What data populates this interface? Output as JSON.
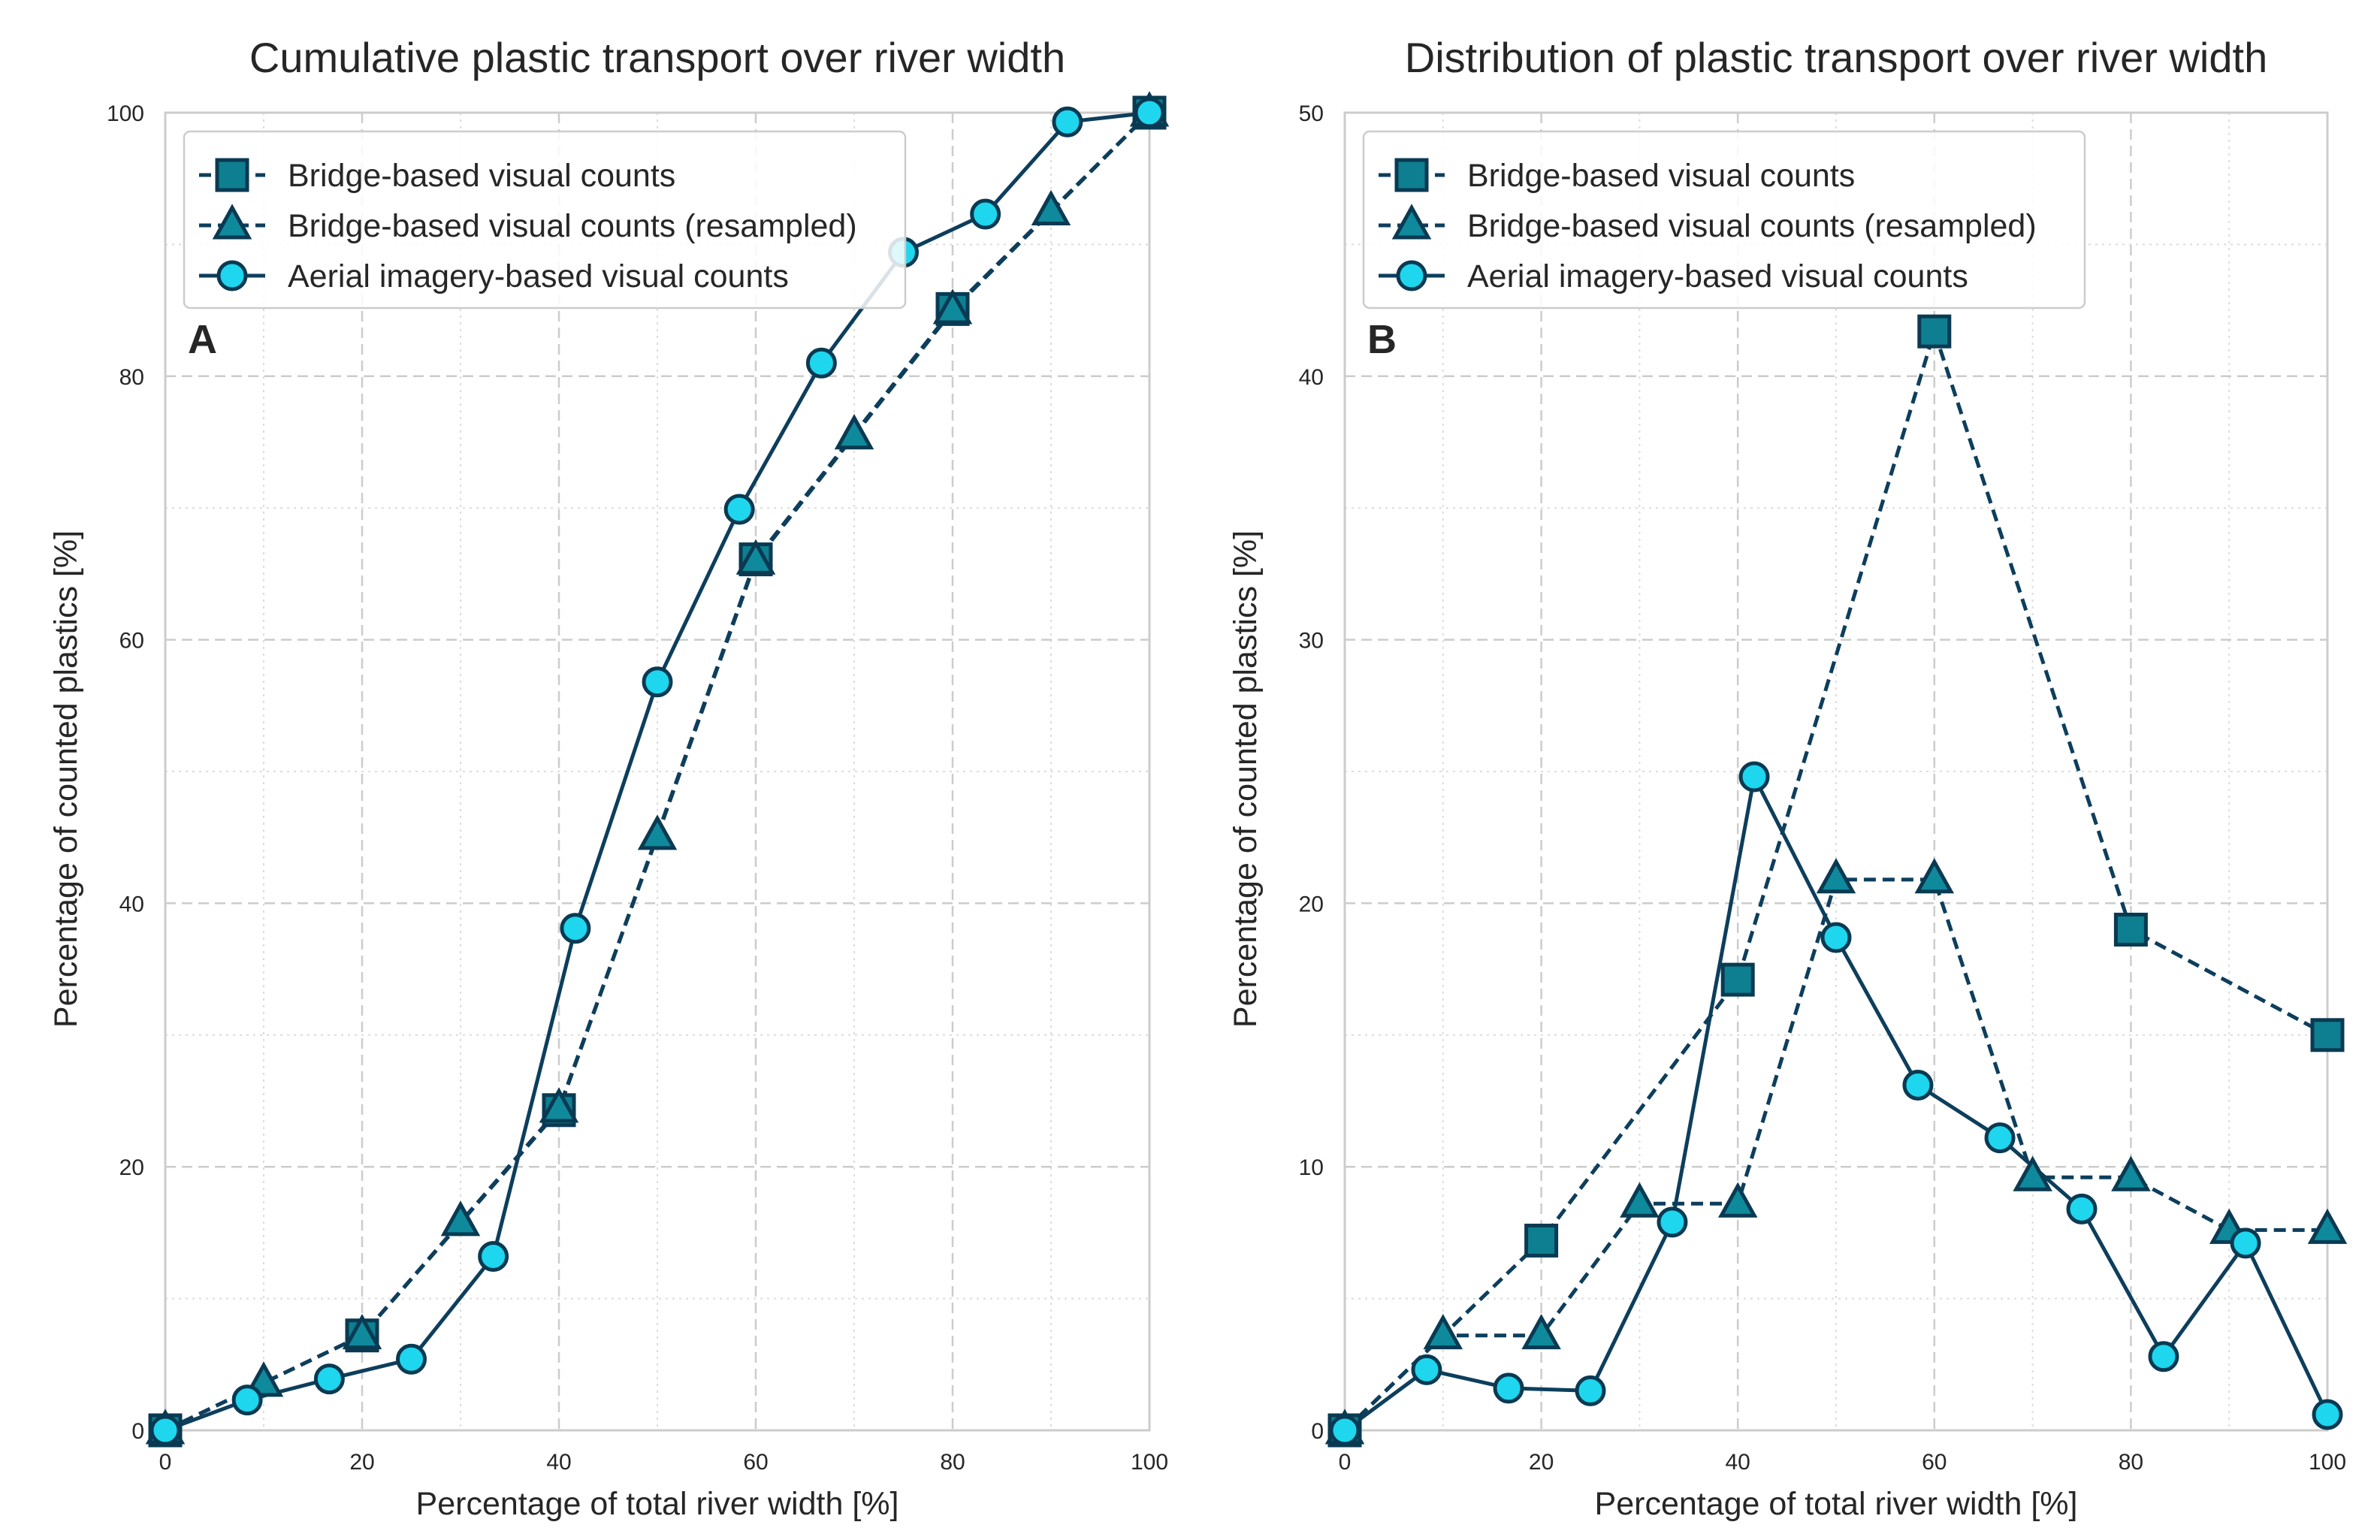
{
  "colors": {
    "line": "#0d3e5c",
    "square_fill": "#0e7f90",
    "triangle_fill": "#0e8a9c",
    "circle_fill": "#1ed6ee",
    "marker_edge": "#0a3a52",
    "grid": "#cccccc",
    "spine": "#cccccc"
  },
  "legend": {
    "items": [
      {
        "label": "Bridge-based visual counts",
        "marker": "square",
        "dash": "dashed"
      },
      {
        "label": "Bridge-based visual counts (resampled)",
        "marker": "triangle",
        "dash": "dashed"
      },
      {
        "label": "Aerial imagery-based visual counts",
        "marker": "circle",
        "dash": "solid"
      }
    ]
  },
  "chart_data": [
    {
      "type": "line",
      "panel_label": "A",
      "title": "Cumulative plastic transport over river width",
      "xlabel": "Percentage of total river width [%]",
      "ylabel": "Percentage of counted plastics [%]",
      "xlim": [
        0,
        100
      ],
      "ylim": [
        0,
        100
      ],
      "xticks": [
        0,
        20,
        40,
        60,
        80,
        100
      ],
      "yticks": [
        0,
        20,
        40,
        60,
        80,
        100
      ],
      "grid": true,
      "legend_position": "top-left",
      "series": [
        {
          "name": "Bridge-based visual counts",
          "marker": "square",
          "dash": "dashed",
          "x": [
            0,
            20,
            40,
            60,
            80,
            100
          ],
          "y": [
            0,
            7.2,
            24.3,
            66.1,
            85.1,
            100
          ]
        },
        {
          "name": "Bridge-based visual counts (resampled)",
          "marker": "triangle",
          "dash": "dashed",
          "x": [
            0,
            10,
            20,
            30,
            40,
            50,
            60,
            70,
            80,
            90,
            100
          ],
          "y": [
            0,
            3.6,
            7.2,
            15.8,
            24.4,
            45.1,
            66.0,
            75.5,
            85.0,
            92.5,
            100
          ]
        },
        {
          "name": "Aerial imagery-based visual counts",
          "marker": "circle",
          "dash": "solid",
          "x": [
            0,
            8.33,
            16.67,
            25,
            33.33,
            41.67,
            50,
            58.33,
            66.67,
            75,
            83.33,
            91.67,
            100
          ],
          "y": [
            0,
            2.3,
            3.9,
            5.4,
            13.2,
            38.1,
            56.8,
            69.9,
            81.0,
            89.4,
            92.3,
            99.3,
            100
          ]
        }
      ]
    },
    {
      "type": "line",
      "panel_label": "B",
      "title": "Distribution of plastic transport over river width",
      "xlabel": "Percentage of total river width [%]",
      "ylabel": "Percentage of counted plastics [%]",
      "xlim": [
        0,
        100
      ],
      "ylim": [
        0,
        50
      ],
      "xticks": [
        0,
        20,
        40,
        60,
        80,
        100
      ],
      "yticks": [
        0,
        10,
        20,
        30,
        40,
        50
      ],
      "grid": true,
      "legend_position": "top-left",
      "series": [
        {
          "name": "Bridge-based visual counts",
          "marker": "square",
          "dash": "dashed",
          "x": [
            0,
            20,
            40,
            60,
            80,
            100
          ],
          "y": [
            0,
            7.2,
            17.1,
            41.7,
            19.0,
            15.0
          ]
        },
        {
          "name": "Bridge-based visual counts (resampled)",
          "marker": "triangle",
          "dash": "dashed",
          "x": [
            0,
            10,
            20,
            30,
            40,
            50,
            60,
            70,
            80,
            90,
            100
          ],
          "y": [
            0,
            3.6,
            3.6,
            8.6,
            8.6,
            20.9,
            20.9,
            9.6,
            9.6,
            7.6,
            7.6
          ]
        },
        {
          "name": "Aerial imagery-based visual counts",
          "marker": "circle",
          "dash": "solid",
          "x": [
            0,
            8.33,
            16.67,
            25,
            33.33,
            41.67,
            50,
            58.33,
            66.67,
            75,
            83.33,
            91.67,
            100
          ],
          "y": [
            0,
            2.3,
            1.6,
            1.5,
            7.9,
            24.8,
            18.7,
            13.1,
            11.1,
            8.4,
            2.8,
            7.1,
            0.6
          ]
        }
      ]
    }
  ]
}
